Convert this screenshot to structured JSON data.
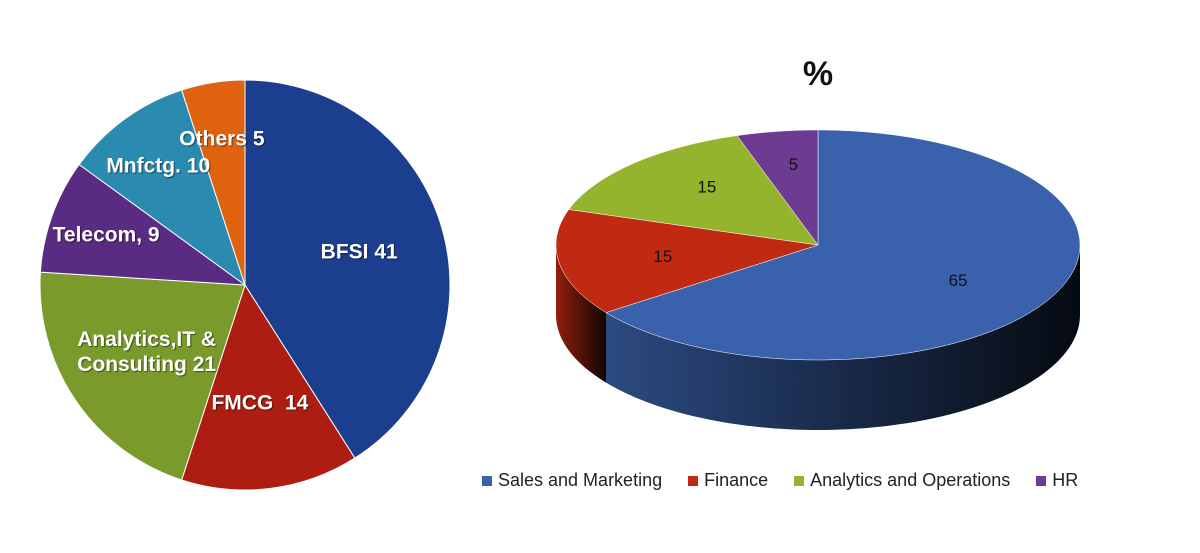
{
  "chart_data": [
    {
      "type": "pie",
      "categories": [
        "BFSI 41",
        "FMCG  14",
        "Analytics,IT & Consulting 21",
        "Telecom, 9",
        "Mnfctg. 10",
        "Others 5"
      ],
      "values": [
        41,
        14,
        21,
        9,
        10,
        5
      ],
      "colors": [
        "#1b3f8e",
        "#ad1d12",
        "#7a9b2c",
        "#5a2b82",
        "#2a8ab0",
        "#df620e"
      ]
    },
    {
      "type": "pie3d",
      "title": "%",
      "series": [
        {
          "name": "Sales and Marketing",
          "color": "#3a62ac",
          "values": [
            65
          ]
        },
        {
          "name": "Finance",
          "color": "#c12a12",
          "values": [
            15
          ]
        },
        {
          "name": "Analytics and Operations",
          "color": "#93b42c",
          "values": [
            15
          ]
        },
        {
          "name": "HR",
          "color": "#6d3b92",
          "values": [
            5
          ]
        }
      ],
      "legend": "bottom"
    }
  ]
}
